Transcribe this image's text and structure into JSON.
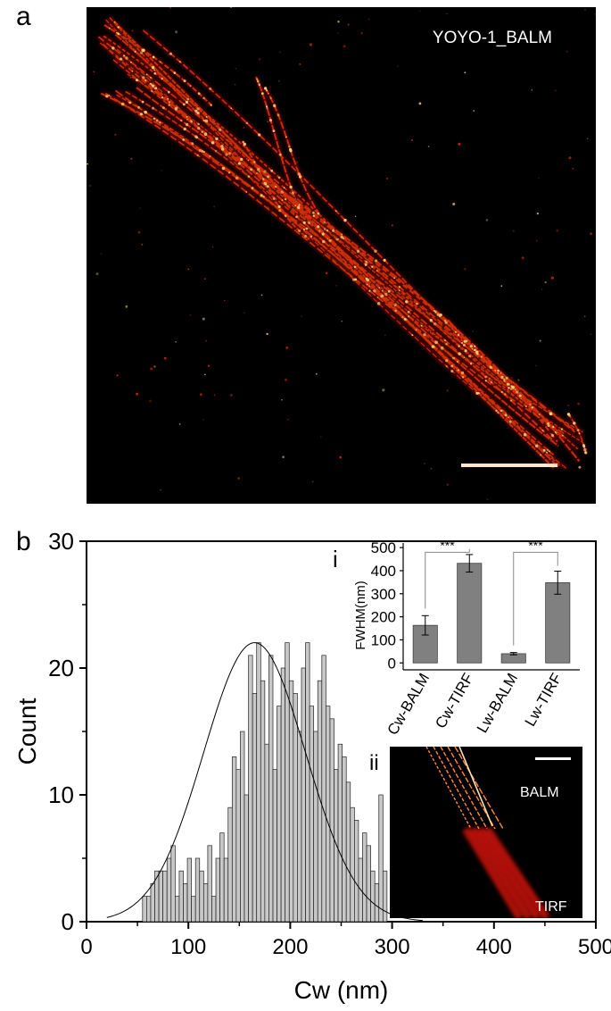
{
  "panels": {
    "a": {
      "letter": "a",
      "image_label": "YOYO-1_BALM",
      "colors": {
        "background": "#000000",
        "filament_core": "#ffd27a",
        "filament_body": "#d0300a",
        "filament_glow": "#5a0800"
      }
    },
    "b": {
      "letter": "b",
      "inset_i_label": "i",
      "inset_ii_label": "ii",
      "inset_ii_top_label": "BALM",
      "inset_ii_bottom_label": "TIRF",
      "inset_i_significance": [
        "***",
        "***"
      ]
    }
  },
  "chart_data": [
    {
      "type": "bar",
      "subtype": "histogram",
      "title": "",
      "xlabel": "Cw (nm)",
      "ylabel": "Count",
      "xlim": [
        0,
        500
      ],
      "ylim": [
        0,
        30
      ],
      "xticks": [
        0,
        100,
        200,
        300,
        400,
        500
      ],
      "yticks": [
        0,
        10,
        20,
        30
      ],
      "bin_width_nm": 4,
      "bin_start_nm": 55,
      "counts": [
        2,
        2,
        3,
        4,
        4,
        4,
        5,
        6,
        2,
        4,
        3,
        5,
        2,
        5,
        4,
        3,
        6,
        2,
        5,
        7,
        5,
        9,
        13,
        12,
        15,
        10,
        21,
        18,
        22,
        19,
        14,
        21,
        12,
        17,
        20,
        22,
        19,
        18,
        15,
        20,
        22,
        17,
        15,
        19,
        21,
        17,
        16,
        12,
        14,
        13,
        11,
        9,
        8,
        5,
        7,
        6,
        4,
        3,
        10,
        4,
        0
      ],
      "fit": {
        "type": "gaussian",
        "center": 165,
        "amplitude": 22,
        "sigma": 50
      },
      "colors": {
        "bar_fill": "#c8c8c8",
        "bar_stroke": "#222222",
        "fit_line": "#000000"
      }
    },
    {
      "type": "bar",
      "title": "",
      "xlabel": "",
      "ylabel": "FWHM(nm)",
      "categories": [
        "Cw-BALM",
        "Cw-TIRF",
        "Lw-BALM",
        "Lw-TIRF"
      ],
      "values": [
        163,
        432,
        40,
        348
      ],
      "errors": [
        42,
        38,
        5,
        50
      ],
      "ylim": [
        -30,
        520
      ],
      "yticks": [
        0,
        100,
        200,
        300,
        400,
        500
      ],
      "significance": [
        [
          "Cw-BALM",
          "Cw-TIRF"
        ],
        [
          "Lw-BALM",
          "Lw-TIRF"
        ]
      ],
      "colors": {
        "bar_fill": "#808080",
        "bar_stroke": "#404040"
      }
    }
  ]
}
